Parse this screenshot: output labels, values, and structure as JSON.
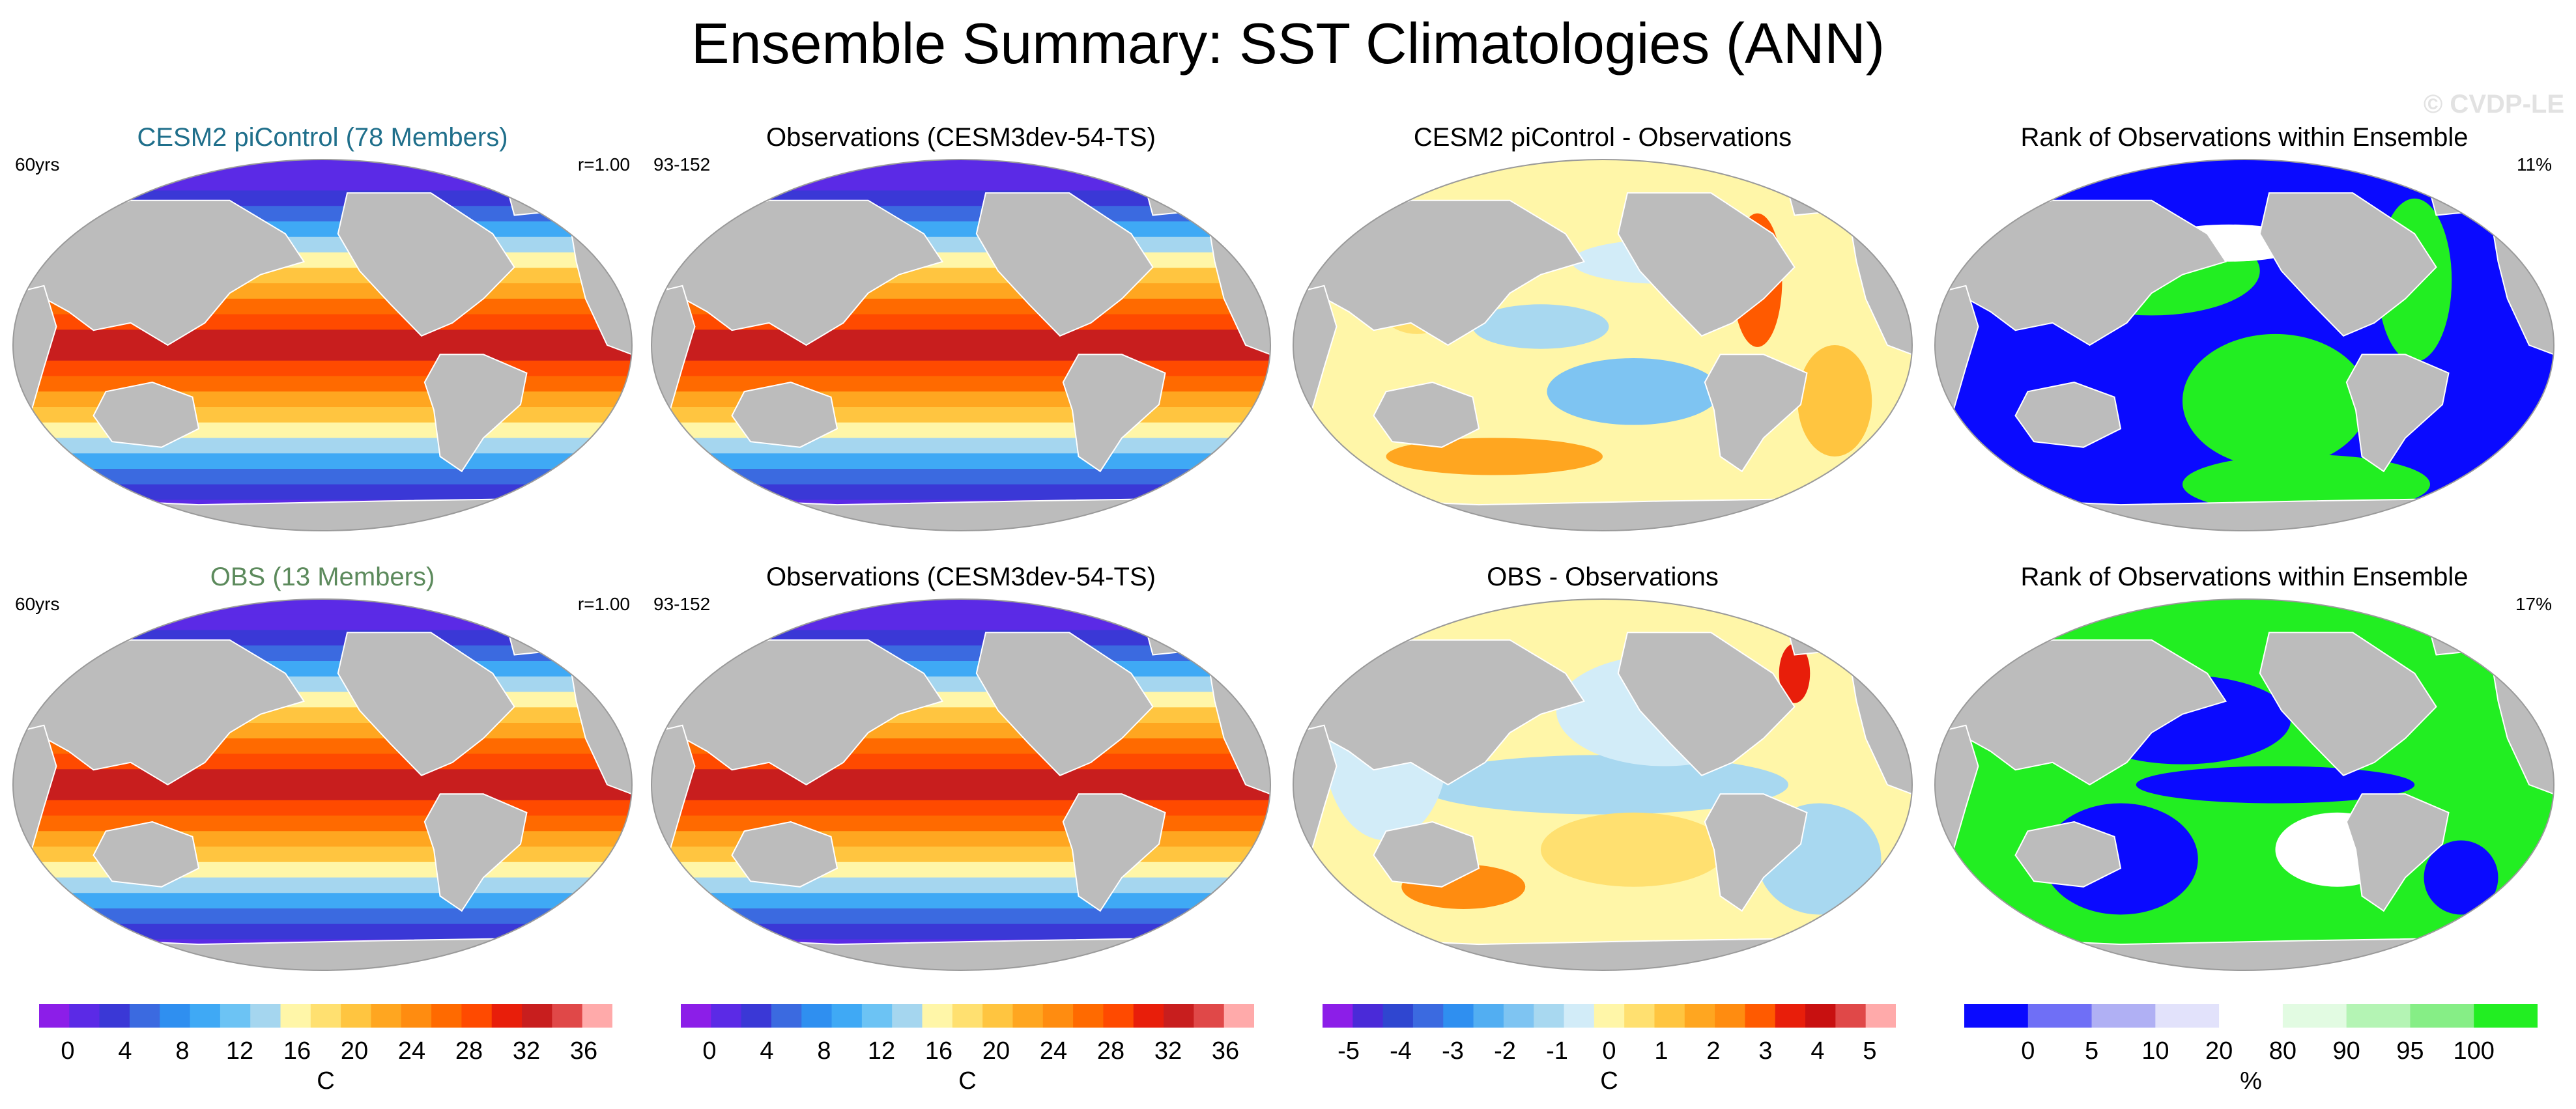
{
  "title": "Ensemble Summary: SST Climatologies (ANN)",
  "watermark": "© CVDP-LE",
  "panels": [
    {
      "title": "CESM2 piControl (78 Members)",
      "title_color": "#1f6f8b",
      "left": "60yrs",
      "right": "r=1.00",
      "field": "sst",
      "scale": "temp"
    },
    {
      "title": "Observations (CESM3dev-54-TS)",
      "title_color": "#000000",
      "left": "93-152",
      "right": "",
      "field": "sst",
      "scale": "temp"
    },
    {
      "title": "CESM2 piControl - Observations",
      "title_color": "#000000",
      "left": "",
      "right": "",
      "field": "diff1",
      "scale": "diff"
    },
    {
      "title": "Rank of Observations within Ensemble",
      "title_color": "#000000",
      "left": "",
      "right": "11%",
      "field": "rank1",
      "scale": "rank"
    },
    {
      "title": "OBS (13 Members)",
      "title_color": "#5c8a5c",
      "left": "60yrs",
      "right": "r=1.00",
      "field": "sst",
      "scale": "temp"
    },
    {
      "title": "Observations (CESM3dev-54-TS)",
      "title_color": "#000000",
      "left": "93-152",
      "right": "",
      "field": "sst",
      "scale": "temp"
    },
    {
      "title": "OBS - Observations",
      "title_color": "#000000",
      "left": "",
      "right": "",
      "field": "diff2",
      "scale": "diff"
    },
    {
      "title": "Rank of Observations within Ensemble",
      "title_color": "#000000",
      "left": "",
      "right": "17%",
      "field": "rank2",
      "scale": "rank"
    }
  ],
  "colorbars": [
    {
      "name": "temp",
      "unit": "C",
      "labels": [
        "0",
        "4",
        "8",
        "12",
        "16",
        "20",
        "24",
        "28",
        "32",
        "36"
      ],
      "colors": [
        "#8c1ee8",
        "#5b2ae6",
        "#3a38d6",
        "#3b6ae0",
        "#2f8ff0",
        "#3fa9f5",
        "#6cc3f4",
        "#a5d6ef",
        "#fff6a8",
        "#ffe070",
        "#ffc540",
        "#ffa620",
        "#ff8c10",
        "#ff6a00",
        "#ff4a00",
        "#e81e0a",
        "#c81e1e",
        "#e04848",
        "#ffaaaa"
      ]
    },
    {
      "name": "temp",
      "unit": "C",
      "labels": [
        "0",
        "4",
        "8",
        "12",
        "16",
        "20",
        "24",
        "28",
        "32",
        "36"
      ],
      "colors": [
        "#8c1ee8",
        "#5b2ae6",
        "#3a38d6",
        "#3b6ae0",
        "#2f8ff0",
        "#3fa9f5",
        "#6cc3f4",
        "#a5d6ef",
        "#fff6a8",
        "#ffe070",
        "#ffc540",
        "#ffa620",
        "#ff8c10",
        "#ff6a00",
        "#ff4a00",
        "#e81e0a",
        "#c81e1e",
        "#e04848",
        "#ffaaaa"
      ]
    },
    {
      "name": "diff",
      "unit": "C",
      "labels": [
        "-5",
        "-4",
        "-3",
        "-2",
        "-1",
        "0",
        "1",
        "2",
        "3",
        "4",
        "5"
      ],
      "colors": [
        "#8c1ee8",
        "#4a2ad8",
        "#2f46d0",
        "#3b6ae0",
        "#2f8ff0",
        "#52aef2",
        "#7ec4f2",
        "#a8d8f0",
        "#d2ecf8",
        "#fff6a8",
        "#ffe070",
        "#ffc540",
        "#ffa620",
        "#ff8c10",
        "#ff5a00",
        "#e81e0a",
        "#c81010",
        "#e04848",
        "#ffaaaa"
      ]
    },
    {
      "name": "rank",
      "unit": "%",
      "labels": [
        "0",
        "5",
        "10",
        "20",
        "80",
        "90",
        "95",
        "100"
      ],
      "colors": [
        "#0a0aff",
        "#6f6ff6",
        "#b0b0f4",
        "#e2e2fb",
        "#ffffff",
        "#e2fbe2",
        "#b4f4b4",
        "#86ee86",
        "#22ee22"
      ]
    }
  ],
  "chart_data": {
    "type": "heatmap",
    "title": "Ensemble Summary: SST Climatologies (ANN)",
    "projection": "Robinson, Pacific-centered",
    "maps": [
      {
        "title": "CESM2 piControl (78 Members)",
        "variable": "SST climatology",
        "units": "C",
        "range": [
          0,
          36
        ],
        "pattern_correlation": "r=1.00",
        "period": "60yrs"
      },
      {
        "title": "Observations (CESM3dev-54-TS)",
        "variable": "SST climatology",
        "units": "C",
        "range": [
          0,
          36
        ],
        "period": "93-152"
      },
      {
        "title": "CESM2 piControl - Observations",
        "variable": "SST difference",
        "units": "C",
        "range": [
          -5,
          5
        ]
      },
      {
        "title": "Rank of Observations within Ensemble",
        "variable": "rank",
        "units": "%",
        "range": [
          0,
          100
        ],
        "area_outside": "11%"
      },
      {
        "title": "OBS (13 Members)",
        "variable": "SST climatology",
        "units": "C",
        "range": [
          0,
          36
        ],
        "pattern_correlation": "r=1.00",
        "period": "60yrs"
      },
      {
        "title": "Observations (CESM3dev-54-TS)",
        "variable": "SST climatology",
        "units": "C",
        "range": [
          0,
          36
        ],
        "period": "93-152"
      },
      {
        "title": "OBS - Observations",
        "variable": "SST difference",
        "units": "C",
        "range": [
          -5,
          5
        ]
      },
      {
        "title": "Rank of Observations within Ensemble",
        "variable": "rank",
        "units": "%",
        "range": [
          0,
          100
        ],
        "area_outside": "17%"
      }
    ]
  }
}
